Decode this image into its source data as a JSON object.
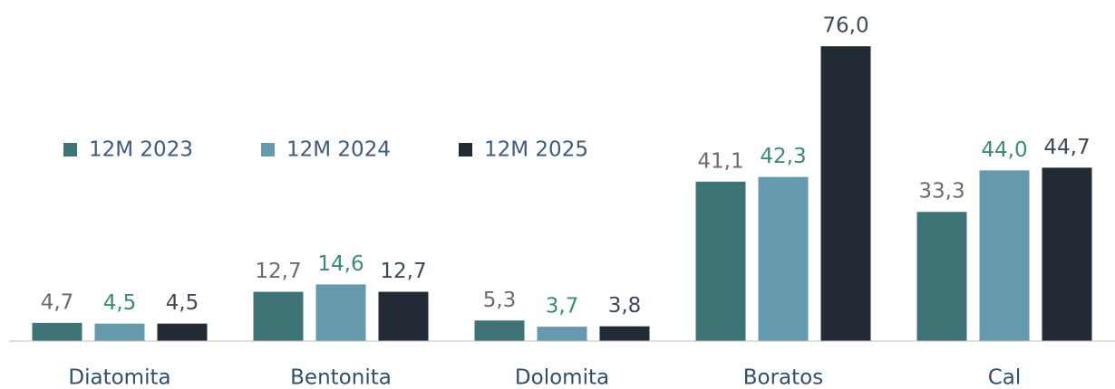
{
  "chart_data": {
    "type": "bar",
    "categories": [
      "Diatomita",
      "Bentonita",
      "Dolomita",
      "Boratos",
      "Cal"
    ],
    "series": [
      {
        "name": "12M 2023",
        "color": "#3e7475",
        "label_color": "#6b6b6b",
        "values": [
          4.7,
          12.7,
          5.3,
          41.1,
          33.3
        ],
        "value_labels": [
          "4,7",
          "12,7",
          "5,3",
          "41,1",
          "33,3"
        ]
      },
      {
        "name": "12M 2024",
        "color": "#6499ae",
        "label_color": "#3a8a78",
        "values": [
          4.5,
          14.6,
          3.7,
          42.3,
          44.0
        ],
        "value_labels": [
          "4,5",
          "14,6",
          "3,7",
          "42,3",
          "44,0"
        ]
      },
      {
        "name": "12M 2025",
        "color": "#222b35",
        "label_color": "#3d4a5c",
        "values": [
          4.5,
          12.7,
          3.8,
          76.0,
          44.7
        ],
        "value_labels": [
          "4,5",
          "12,7",
          "3,8",
          "76,0",
          "44,7"
        ]
      }
    ],
    "ylim": [
      0,
      80
    ],
    "legend": "upper left"
  }
}
